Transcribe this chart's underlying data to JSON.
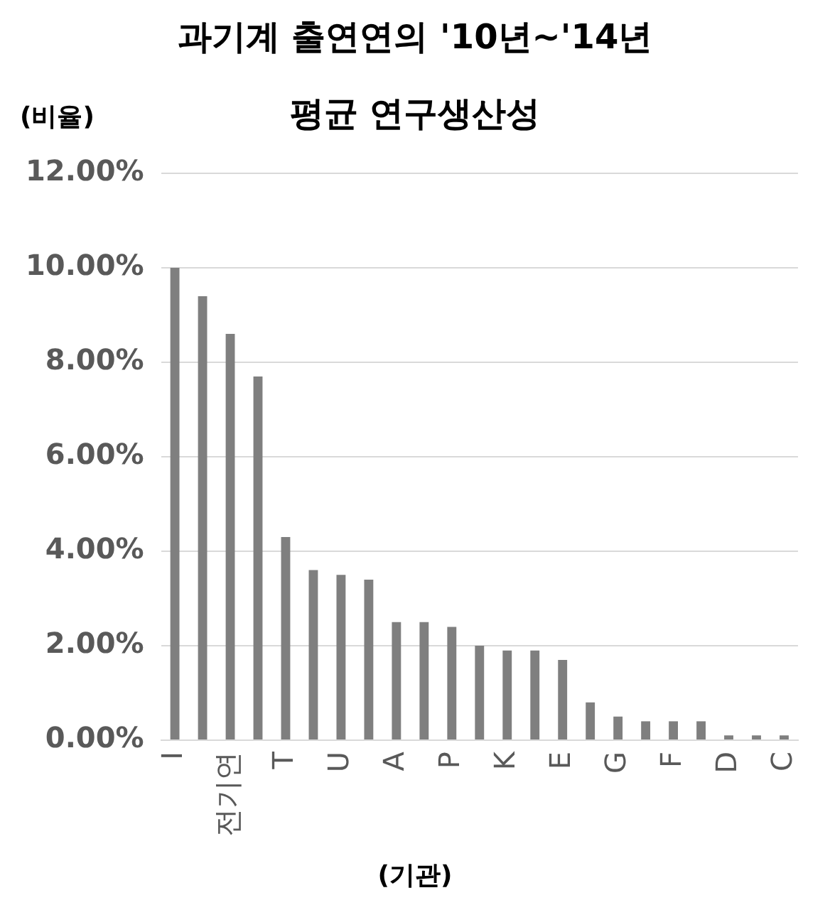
{
  "chart_data": {
    "type": "bar",
    "title": "과기계 출연연의 '10년~'14년",
    "subtitle": "평균 연구생산성",
    "ylabel": "(비율)",
    "xlabel": "(기관)",
    "categories": [
      "I",
      null,
      "전기연",
      null,
      "T",
      null,
      "U",
      null,
      "A",
      null,
      "P",
      null,
      "K",
      null,
      "E",
      null,
      "G",
      null,
      "F",
      null,
      "D",
      null,
      "C"
    ],
    "values": [
      10.0,
      9.4,
      8.6,
      7.7,
      4.3,
      3.6,
      3.5,
      3.4,
      2.5,
      2.5,
      2.4,
      2.0,
      1.9,
      1.9,
      1.7,
      0.8,
      0.5,
      0.4,
      0.4,
      0.4,
      0.1,
      0.1,
      0.1
    ],
    "color": "#7f7f7f",
    "ylim": [
      0,
      12
    ],
    "yticks": [
      {
        "value": 0,
        "label": "0.00%"
      },
      {
        "value": 2,
        "label": "2.00%"
      },
      {
        "value": 4,
        "label": "4.00%"
      },
      {
        "value": 6,
        "label": "6.00%"
      },
      {
        "value": 8,
        "label": "8.00%"
      },
      {
        "value": 10,
        "label": "10.00%"
      },
      {
        "value": 12,
        "label": "12.00%"
      }
    ],
    "grid": "y",
    "legend": false
  }
}
